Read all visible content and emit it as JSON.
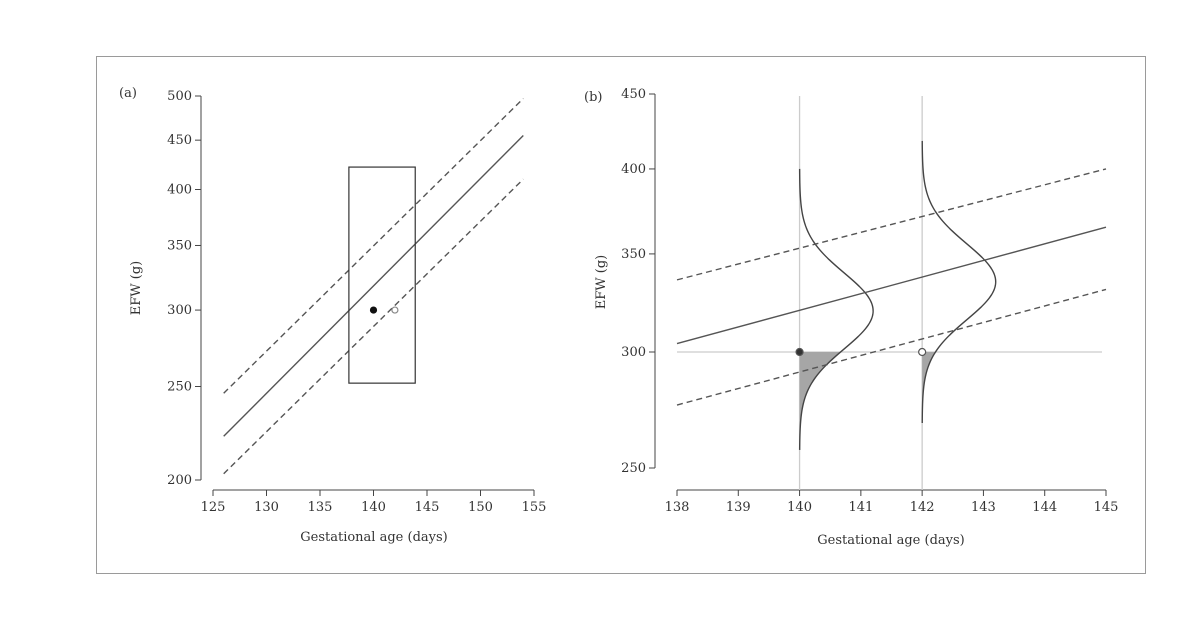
{
  "chart_data": [
    {
      "type": "line",
      "panel_label": "(a)",
      "xlabel": "Gestational age (days)",
      "ylabel": "EFW (g)",
      "xlim": [
        125,
        155
      ],
      "ylim": [
        200,
        500
      ],
      "yscale": "log",
      "xticks": [
        125,
        130,
        135,
        140,
        145,
        150,
        155
      ],
      "yticks": [
        200,
        250,
        300,
        350,
        400,
        450,
        500
      ],
      "series": [
        {
          "style": "solid",
          "x": [
            126,
            154
          ],
          "y": [
            222,
            455
          ]
        },
        {
          "style": "dashed",
          "x": [
            126,
            154
          ],
          "y": [
            246,
            497
          ]
        },
        {
          "style": "dashed",
          "x": [
            126,
            154
          ],
          "y": [
            203,
            410
          ]
        }
      ],
      "box": {
        "x": [
          137.7,
          143.9
        ],
        "y": [
          252,
          422
        ]
      },
      "points": [
        {
          "x": 140,
          "y": 300,
          "fill": "filled"
        },
        {
          "x": 142,
          "y": 300,
          "fill": "open"
        }
      ],
      "colors": {
        "line": "#555555",
        "box": "#333333",
        "open_point": "#888888"
      }
    },
    {
      "type": "line",
      "panel_label": "(b)",
      "xlabel": "Gestational age (days)",
      "ylabel": "EFW (g)",
      "xlim": [
        138,
        145
      ],
      "ylim": [
        250,
        450
      ],
      "yscale": "log",
      "xticks": [
        138,
        139,
        140,
        141,
        142,
        143,
        144,
        145
      ],
      "yticks": [
        250,
        300,
        350,
        400,
        450
      ],
      "series": [
        {
          "style": "solid",
          "x": [
            138,
            145
          ],
          "y": [
            304,
            365
          ]
        },
        {
          "style": "dashed",
          "x": [
            138,
            145
          ],
          "y": [
            336,
            400
          ]
        },
        {
          "style": "dashed",
          "x": [
            138,
            145
          ],
          "y": [
            276,
            331
          ]
        }
      ],
      "vertical_lines": [
        140,
        142
      ],
      "horizontal_line": 300,
      "distributions": [
        {
          "x": 140,
          "center_y": 320,
          "y_range": [
            257,
            400
          ],
          "peak_width_days": 1.2,
          "shaded_below": 300
        },
        {
          "x": 142,
          "center_y": 335,
          "y_range": [
            268,
            418
          ],
          "peak_width_days": 1.2,
          "shaded_below": 300
        }
      ],
      "points": [
        {
          "x": 140,
          "y": 300,
          "fill": "filled"
        },
        {
          "x": 142,
          "y": 300,
          "fill": "open"
        }
      ],
      "colors": {
        "line": "#555555",
        "reference": "#cccccc",
        "shade": "#a6a6a6"
      }
    }
  ]
}
